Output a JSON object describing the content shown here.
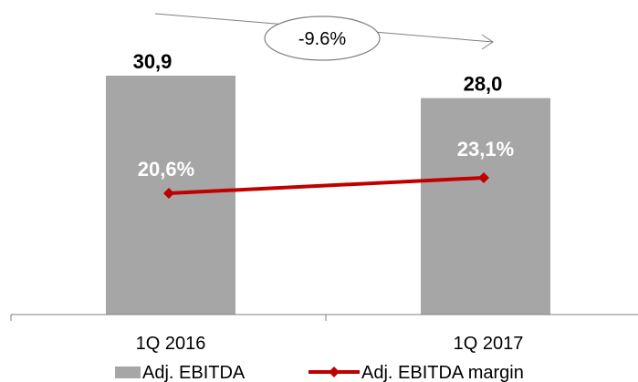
{
  "chart_data": {
    "type": "bar",
    "categories": [
      "1Q 2016",
      "1Q 2017"
    ],
    "series": [
      {
        "name": "Adj. EBITDA",
        "type": "bar",
        "values": [
          30.9,
          28.0
        ],
        "labels": [
          "30,9",
          "28,0"
        ]
      },
      {
        "name": "Adj. EBITDA margin",
        "type": "line",
        "values": [
          20.6,
          23.1
        ],
        "labels": [
          "20,6%",
          "23,1%"
        ]
      }
    ],
    "annotation": "-9.6%",
    "legend_position": "bottom",
    "grid": false
  },
  "colors": {
    "bar": "#a6a6a6",
    "line": "#c00000",
    "annotation_stroke": "#7f7f7f",
    "axis": "#7f7f7f"
  }
}
